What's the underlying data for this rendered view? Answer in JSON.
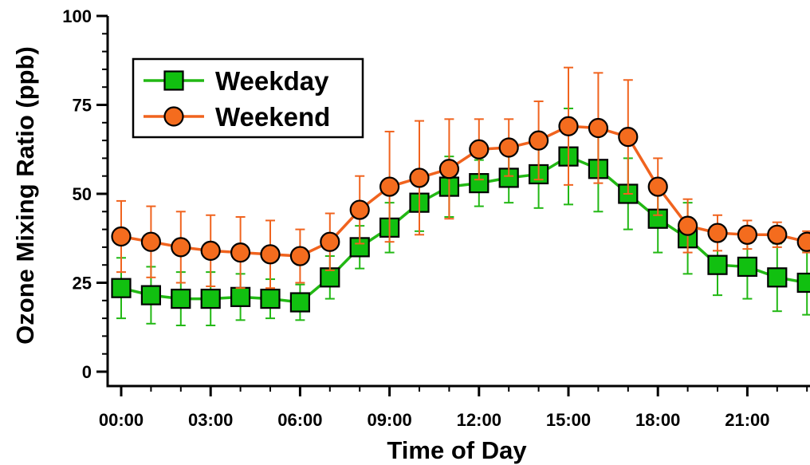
{
  "chart_data": {
    "type": "line",
    "xlabel": "Time of Day",
    "ylabel": "Ozone Mixing Ratio (ppb)",
    "x_tick_labels": [
      "00:00",
      "03:00",
      "06:00",
      "09:00",
      "12:00",
      "15:00",
      "18:00",
      "21:00"
    ],
    "y_tick_labels": [
      "0",
      "25",
      "50",
      "75",
      "100"
    ],
    "ylim": [
      0,
      100
    ],
    "xlim": [
      -0.5,
      23
    ],
    "grid": false,
    "legend_position": "top-left",
    "hours": [
      0,
      1,
      2,
      3,
      4,
      5,
      6,
      7,
      8,
      9,
      10,
      11,
      12,
      13,
      14,
      15,
      16,
      17,
      18,
      19,
      20,
      21,
      22,
      23
    ],
    "series": [
      {
        "name": "Weekday",
        "marker": "square",
        "line_color": "#22b814",
        "marker_fill": "#11c010",
        "values": [
          23.5,
          21.5,
          20.5,
          20.5,
          21,
          20.5,
          19.5,
          26.5,
          35,
          40.5,
          47.5,
          52,
          53,
          54.5,
          55.5,
          60.5,
          57,
          50,
          43,
          37.5,
          30,
          29.5,
          26.5,
          25
        ],
        "errors": [
          8.5,
          8,
          7.5,
          7.5,
          6.5,
          5.5,
          5,
          6,
          6,
          7,
          8,
          8.5,
          6.5,
          7,
          9.5,
          13.5,
          12,
          10,
          9.5,
          10,
          8.5,
          9,
          9.5,
          9
        ]
      },
      {
        "name": "Weekend",
        "marker": "circle",
        "line_color": "#f0631e",
        "marker_fill": "#f46c1e",
        "values": [
          38,
          36.5,
          35,
          34,
          33.5,
          33,
          32.5,
          36.5,
          45.5,
          52,
          54.5,
          57,
          62.5,
          63,
          65,
          69,
          68.5,
          66,
          52,
          41,
          39,
          38.5,
          38.5,
          36.5
        ],
        "errors": [
          10,
          10,
          10,
          10,
          10,
          9.5,
          7.5,
          8,
          9.5,
          15.5,
          16,
          14,
          8.5,
          8,
          11,
          16.5,
          15.5,
          16,
          8,
          7.5,
          5,
          4,
          3.5,
          3
        ]
      }
    ]
  }
}
